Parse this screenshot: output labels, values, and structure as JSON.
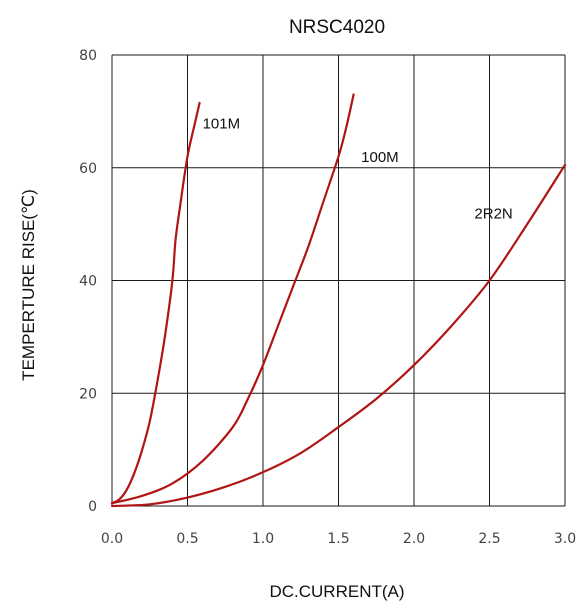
{
  "chart_data": {
    "type": "line",
    "title": "NRSC4020",
    "xlabel": "DC.CURRENT(A)",
    "ylabel": "TEMPERTURE RISE(℃)",
    "xlim": [
      0,
      3.0
    ],
    "ylim": [
      0,
      80
    ],
    "x_ticks": [
      "0.0",
      "0.5",
      "1.0",
      "1.5",
      "2.0",
      "2.5",
      "3.0"
    ],
    "y_ticks": [
      "0",
      "20",
      "40",
      "60",
      "80"
    ],
    "grid": true,
    "line_color": "#b01414",
    "series": [
      {
        "name": "101M",
        "points": [
          [
            0,
            0.5
          ],
          [
            0.05,
            1.2
          ],
          [
            0.1,
            3
          ],
          [
            0.15,
            6
          ],
          [
            0.2,
            10
          ],
          [
            0.25,
            15
          ],
          [
            0.3,
            22
          ],
          [
            0.35,
            30
          ],
          [
            0.4,
            40
          ],
          [
            0.42,
            47
          ],
          [
            0.45,
            53
          ],
          [
            0.5,
            62
          ],
          [
            0.55,
            68
          ],
          [
            0.58,
            71.5
          ]
        ]
      },
      {
        "name": "100M",
        "points": [
          [
            0,
            0.5
          ],
          [
            0.2,
            1.8
          ],
          [
            0.4,
            4
          ],
          [
            0.6,
            8
          ],
          [
            0.8,
            14
          ],
          [
            0.9,
            19
          ],
          [
            1.0,
            25
          ],
          [
            1.1,
            32
          ],
          [
            1.2,
            39
          ],
          [
            1.3,
            46
          ],
          [
            1.4,
            54
          ],
          [
            1.5,
            62
          ],
          [
            1.55,
            67
          ],
          [
            1.6,
            73
          ]
        ]
      },
      {
        "name": "2R2N",
        "points": [
          [
            0,
            0
          ],
          [
            0.25,
            0.3
          ],
          [
            0.5,
            1.5
          ],
          [
            0.75,
            3.4
          ],
          [
            1.0,
            6
          ],
          [
            1.25,
            9.4
          ],
          [
            1.5,
            14
          ],
          [
            1.75,
            19
          ],
          [
            2.0,
            25
          ],
          [
            2.25,
            32
          ],
          [
            2.5,
            40
          ],
          [
            2.75,
            50
          ],
          [
            3.0,
            60.5
          ]
        ]
      }
    ],
    "annotations": [
      {
        "text": "101M",
        "x": 0.6,
        "y": 67
      },
      {
        "text": "100M",
        "x": 1.65,
        "y": 61
      },
      {
        "text": "2R2N",
        "x": 2.4,
        "y": 51
      }
    ]
  }
}
